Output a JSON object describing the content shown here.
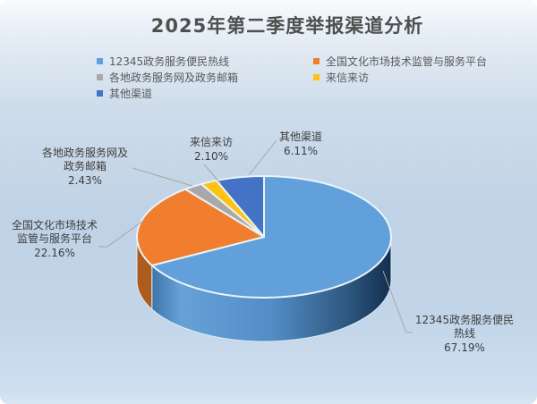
{
  "title": "2025年第二季度举报渠道分析",
  "legend": {
    "items": [
      {
        "label": "12345政务服务便民热线",
        "color": "#61A0DB"
      },
      {
        "label": "全国文化市场技术监管与服务平台",
        "color": "#F07E2E"
      },
      {
        "label": "各地政务服务网及政务邮箱",
        "color": "#A8A8A8"
      },
      {
        "label": "来信来访",
        "color": "#FFC213"
      },
      {
        "label": "其他渠道",
        "color": "#4472C4"
      }
    ]
  },
  "chart_data": {
    "type": "pie",
    "style": "3d",
    "title": "2025年第二季度举报渠道分析",
    "categories": [
      "12345政务服务便民热线",
      "全国文化市场技术监管与服务平台",
      "各地政务服务网及政务邮箱",
      "来信来访",
      "其他渠道"
    ],
    "values": [
      67.19,
      22.16,
      2.43,
      2.1,
      6.11
    ],
    "unit": "percent",
    "colors": [
      "#61A0DB",
      "#F07E2E",
      "#A8A8A8",
      "#FFC213",
      "#4472C4"
    ],
    "start_angle_deg": 0,
    "direction": "clockwise",
    "legend_position": "top",
    "labels": [
      {
        "lines": [
          "12345政务服务便民",
          "热线"
        ],
        "pct": "67.19%"
      },
      {
        "lines": [
          "全国文化市场技术",
          "监管与服务平台"
        ],
        "pct": "22.16%"
      },
      {
        "lines": [
          "各地政务服务网及",
          "政务邮箱"
        ],
        "pct": "2.43%"
      },
      {
        "lines": [
          "来信来访"
        ],
        "pct": "2.10%"
      },
      {
        "lines": [
          "其他渠道"
        ],
        "pct": "6.11%"
      }
    ]
  },
  "colors": {
    "background_top": "#f8fbfd",
    "background_bottom": "#cedff0",
    "title_text": "#4f4f4f",
    "legend_text": "#595959",
    "label_text": "#3d3d3d",
    "leader_line": "#a6a6a6",
    "slice_outline": "#e9f4f8",
    "blue_side_dark": "#16304d",
    "orange_side": "#AC5C1D"
  }
}
